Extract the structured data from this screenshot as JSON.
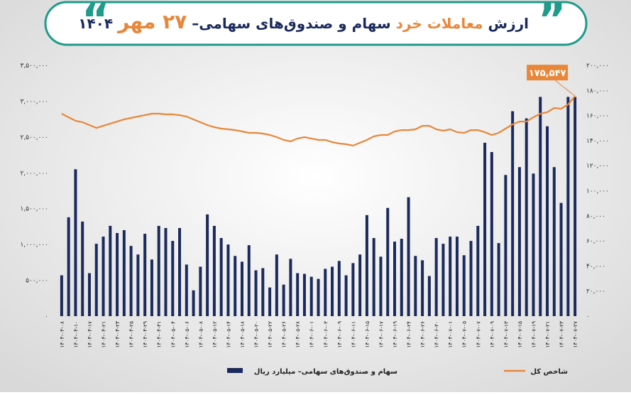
{
  "chart_data": {
    "type": "bar-line",
    "title": [
      "ارزش",
      "معاملات خرد",
      "سهام و صندوق‌های سهامی–",
      "۲۷ مهر",
      "۱۴۰۴"
    ],
    "categories": [
      "۱۴۰۴-۰۴-۰۸",
      null,
      "۱۴۰۴-۰۴-۱۰",
      null,
      "۱۴۰۴-۰۴-۱۷",
      null,
      "۱۴۰۴-۰۴-۲۱",
      null,
      "۱۴۰۴-۰۴-۲۳",
      null,
      "۱۴۰۴-۰۴-۲۵",
      null,
      "۱۴۰۴-۰۴-۲۹",
      null,
      "۱۴۰۴-۰۴-۳۱",
      null,
      "۱۴۰۴-۰۵-۰۴",
      null,
      "۱۴۰۴-۰۵-۰۶",
      null,
      "۱۴۰۴-۰۵-۰۸",
      null,
      "۱۴۰۴-۰۵-۱۲",
      null,
      "۱۴۰۴-۰۵-۱۴",
      null,
      "۱۴۰۴-۰۵-۱۸",
      null,
      "۱۴۰۴-۰۵-۲۰",
      null,
      "۱۴۰۴-۰۵-۲۲",
      null,
      "۱۴۰۴-۰۵-۲۶",
      null,
      "۱۴۰۴-۰۵-۲۸",
      null,
      "۱۴۰۴-۰۶-۰۱",
      null,
      "۱۴۰۴-۰۶-۰۳",
      null,
      "۱۴۰۴-۰۶-۰۹",
      null,
      "۱۴۰۴-۰۶-۱۱",
      null,
      "۱۴۰۴-۰۶-۱۵",
      null,
      "۱۴۰۴-۰۶-۱۷",
      null,
      "۱۴۰۴-۰۶-۱۹",
      null,
      "۱۴۰۴-۰۶-۲۴",
      null,
      "۱۴۰۴-۰۶-۲۶",
      null,
      "۱۴۰۴-۰۶-۳۰",
      null,
      "۱۴۰۴-۰۷-۰۱",
      null,
      "۱۴۰۴-۰۷-۰۵",
      null,
      "۱۴۰۴-۰۷-۰۷",
      null,
      "۱۴۰۴-۰۷-۰۹",
      null,
      "۱۴۰۴-۰۷-۱۳",
      null,
      "۱۴۰۴-۰۷-۱۵",
      null,
      "۱۴۰۴-۰۷-۱۹",
      null,
      "۱۴۰۴-۰۷-۲۱",
      null,
      "۱۴۰۴-۰۷-۲۳",
      null,
      "۱۴۰۴-۰۷-۲۷"
    ],
    "series": [
      {
        "name": "سهام و صندوق‌های سهامی– میلیارد ریال",
        "color": "#1b2a5c",
        "type": "bar",
        "axis": "y",
        "values": [
          570000,
          1380000,
          2050000,
          1320000,
          600000,
          1010000,
          1110000,
          1260000,
          1160000,
          1200000,
          980000,
          860000,
          1150000,
          790000,
          1260000,
          1230000,
          1050000,
          1230000,
          720000,
          360000,
          690000,
          1420000,
          1260000,
          1090000,
          1000000,
          840000,
          760000,
          990000,
          640000,
          670000,
          400000,
          860000,
          440000,
          800000,
          600000,
          590000,
          550000,
          520000,
          660000,
          690000,
          770000,
          570000,
          740000,
          860000,
          1410000,
          1090000,
          830000,
          1510000,
          1040000,
          1080000,
          1660000,
          840000,
          780000,
          560000,
          1090000,
          1010000,
          1110000,
          1110000,
          850000,
          1050000,
          1260000,
          2420000,
          2290000,
          1020000,
          1970000,
          2860000,
          2080000,
          2760000,
          1990000,
          3060000,
          2650000,
          2080000,
          1580000,
          3060000,
          3060000
        ]
      },
      {
        "name": "شاخص کل",
        "color": "#e8873a",
        "type": "line",
        "axis": "y2",
        "values": [
          161500,
          158600,
          155800,
          154700,
          152400,
          150100,
          151800,
          153500,
          155200,
          156900,
          158100,
          159200,
          160300,
          161500,
          161500,
          160900,
          160900,
          160300,
          159200,
          156900,
          154700,
          152400,
          150700,
          149600,
          149000,
          148400,
          147300,
          146200,
          146200,
          145600,
          144500,
          142800,
          140500,
          139400,
          141700,
          142800,
          141700,
          140500,
          140500,
          138800,
          137700,
          137100,
          136000,
          138300,
          140500,
          143400,
          144500,
          144500,
          147300,
          148400,
          148400,
          149000,
          151800,
          151800,
          149000,
          147900,
          149000,
          146700,
          146200,
          148400,
          148400,
          146700,
          144500,
          146200,
          149600,
          153000,
          155200,
          155200,
          158600,
          161500,
          162600,
          166000,
          165400,
          168800,
          175547
        ],
        "value_labels": [
          null,
          null,
          null,
          null,
          null,
          null,
          null,
          null,
          null,
          null,
          null,
          null,
          null,
          null,
          null,
          null,
          null,
          null,
          null,
          null,
          null,
          null,
          null,
          null,
          null,
          null,
          null,
          null,
          null,
          null,
          null,
          null,
          null,
          null,
          null,
          null,
          null,
          null,
          null,
          null,
          null,
          null,
          null,
          null,
          null,
          null,
          null,
          null,
          null,
          null,
          null,
          null,
          null,
          null,
          null,
          null,
          null,
          null,
          null,
          null,
          null,
          null,
          null,
          null,
          null,
          null,
          null,
          null,
          null,
          null,
          null,
          null,
          null,
          null,
          "۱۷۵,۵۴۷"
        ]
      }
    ],
    "ylim": [
      0,
      3500000
    ],
    "yticks": [
      {
        "value": 0,
        "label": "۰"
      },
      {
        "value": 500000,
        "label": "۵۰۰,۰۰۰"
      },
      {
        "value": 1000000,
        "label": "۱,۰۰۰,۰۰۰"
      },
      {
        "value": 1500000,
        "label": "۱,۵۰۰,۰۰۰"
      },
      {
        "value": 2000000,
        "label": "۲,۰۰۰,۰۰۰"
      },
      {
        "value": 2500000,
        "label": "۲,۵۰۰,۰۰۰"
      },
      {
        "value": 3000000,
        "label": "۳,۰۰۰,۰۰۰"
      },
      {
        "value": 3500000,
        "label": "۳,۵۰۰,۰۰۰"
      }
    ],
    "y2lim": [
      0,
      200000
    ],
    "y2ticks": [
      {
        "value": 0,
        "label": "۰"
      },
      {
        "value": 20000,
        "label": "۲۰,۰۰۰"
      },
      {
        "value": 40000,
        "label": "۴۰,۰۰۰"
      },
      {
        "value": 60000,
        "label": "۶۰,۰۰۰"
      },
      {
        "value": 80000,
        "label": "۸۰,۰۰۰"
      },
      {
        "value": 100000,
        "label": "۱۰۰,۰۰۰"
      },
      {
        "value": 120000,
        "label": "۱۲۰,۰۰۰"
      },
      {
        "value": 140000,
        "label": "۱۴۰,۰۰۰"
      },
      {
        "value": 160000,
        "label": "۱۶۰,۰۰۰"
      },
      {
        "value": 180000,
        "label": "۱۸۰,۰۰۰"
      },
      {
        "value": 200000,
        "label": "۲۰۰,۰۰۰"
      }
    ],
    "grid": false
  }
}
